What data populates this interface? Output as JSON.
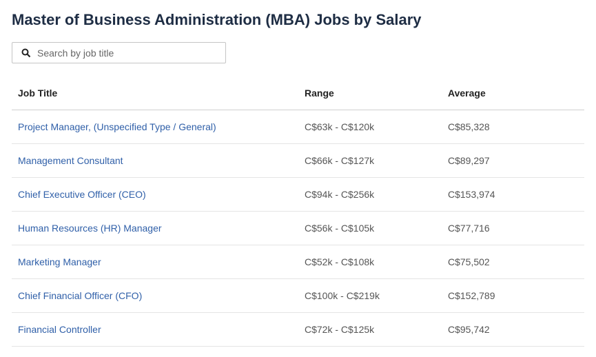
{
  "header": {
    "title": "Master of Business Administration (MBA) Jobs by Salary"
  },
  "search": {
    "placeholder": "Search by job title"
  },
  "table": {
    "columns": [
      "Job Title",
      "Range",
      "Average"
    ],
    "rows": [
      [
        "Project Manager, (Unspecified Type / General)",
        "C$63k - C$120k",
        "C$85,328"
      ],
      [
        "Management Consultant",
        "C$66k - C$127k",
        "C$89,297"
      ],
      [
        "Chief Executive Officer (CEO)",
        "C$94k - C$256k",
        "C$153,974"
      ],
      [
        "Human Resources (HR) Manager",
        "C$56k - C$105k",
        "C$77,716"
      ],
      [
        "Marketing Manager",
        "C$52k - C$108k",
        "C$75,502"
      ],
      [
        "Chief Financial Officer (CFO)",
        "C$100k - C$219k",
        "C$152,789"
      ],
      [
        "Financial Controller",
        "C$72k - C$125k",
        "C$95,742"
      ]
    ]
  }
}
